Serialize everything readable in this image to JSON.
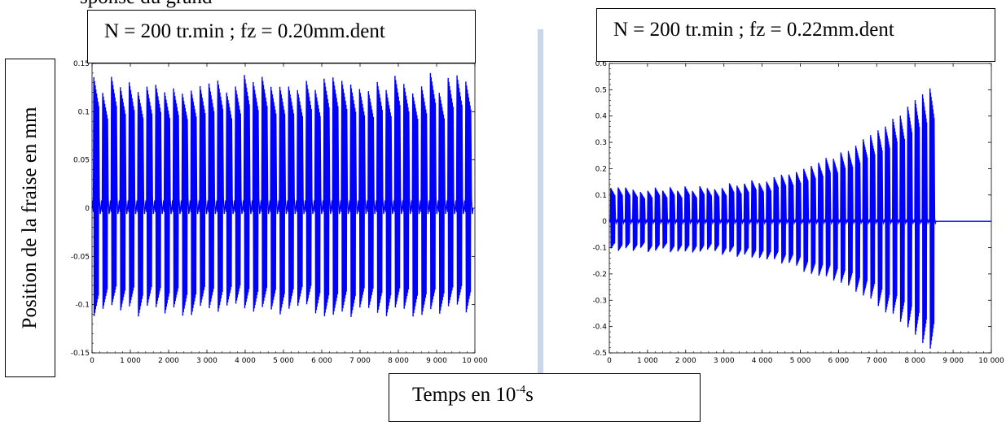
{
  "top_fragment": "sponse du grand",
  "xlabel": {
    "text": "Temps en 10",
    "sup": "-4",
    "suffix": "s"
  },
  "ylabel": "Position de la fraise en mm",
  "chart_data": [
    {
      "type": "line",
      "title": "N = 200 tr.min ;    fz = 0.20mm.dent",
      "xlabel": "Temps en 10-4s",
      "ylabel": "Position de la fraise en mm",
      "xlim": [
        0,
        10000
      ],
      "ylim": [
        -0.15,
        0.15
      ],
      "xticks": [
        "0",
        "1 000",
        "2 000",
        "3 000",
        "4 000",
        "5 000",
        "6 000",
        "7 000",
        "8 000",
        "9 000",
        "10 000"
      ],
      "yticks": [
        "-0.15",
        "-0.1",
        "-0.05",
        "0",
        "0.05",
        "0.1",
        "0.15"
      ],
      "grid": false,
      "series": [
        {
          "color": "#0000ff",
          "pulse_count": 43,
          "x_start": 0,
          "x_end": 9950,
          "peak_max_approx": 0.14,
          "trough_min_approx": -0.115,
          "baseline": 0
        }
      ]
    },
    {
      "type": "line",
      "title": "N = 200 tr.min ;    fz = 0.22mm.dent",
      "xlabel": "Temps en 10-4s",
      "ylabel": "Position de la fraise en mm",
      "xlim": [
        0,
        10000
      ],
      "ylim": [
        -0.5,
        0.6
      ],
      "xticks": [
        "0",
        "1 000",
        "2 000",
        "3 000",
        "4 000",
        "5 000",
        "6 000",
        "7 000",
        "8 000",
        "9 000",
        "10 000"
      ],
      "yticks": [
        "-0.5",
        "-0.4",
        "-0.3",
        "-0.2",
        "-0.1",
        "0",
        "0.1",
        "0.2",
        "0.3",
        "0.4",
        "0.5",
        "0.6"
      ],
      "grid": false,
      "series": [
        {
          "color": "#0000ff",
          "pulse_count": 44,
          "x_start": 0,
          "x_end": 8550,
          "flat_after": 8550,
          "flat_value": 0,
          "initial_amplitude": {
            "peak": 0.12,
            "trough": -0.11
          },
          "final_amplitude": {
            "peak": 0.51,
            "trough": -0.49
          },
          "baseline": 0
        }
      ]
    }
  ]
}
